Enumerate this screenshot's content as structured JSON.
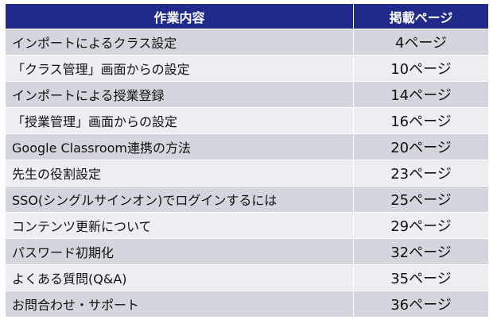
{
  "table": {
    "headers": {
      "task": "作業内容",
      "page": "掲載ページ"
    },
    "rows": [
      {
        "task": "インポートによるクラス設定",
        "page": "4ページ"
      },
      {
        "task": "「クラス管理」画面からの設定",
        "page": "10ページ"
      },
      {
        "task": "インポートによる授業登録",
        "page": "14ページ"
      },
      {
        "task": "「授業管理」画面からの設定",
        "page": "16ページ"
      },
      {
        "task": "Google Classroom連携の方法",
        "page": "20ページ"
      },
      {
        "task": "先生の役割設定",
        "page": "23ページ"
      },
      {
        "task": "SSO(シングルサインオン)でログインするには",
        "page": "25ページ"
      },
      {
        "task": "コンテンツ更新について",
        "page": "29ページ"
      },
      {
        "task": "パスワード初期化",
        "page": "32ページ"
      },
      {
        "task": "よくある質問(Q&A)",
        "page": "35ページ"
      },
      {
        "task": "お問合わせ・サポート",
        "page": "36ページ"
      }
    ]
  },
  "colors": {
    "header_bg": "#1f2a8a",
    "row_dark": "#d3d6dd",
    "row_light": "#eceef2"
  }
}
